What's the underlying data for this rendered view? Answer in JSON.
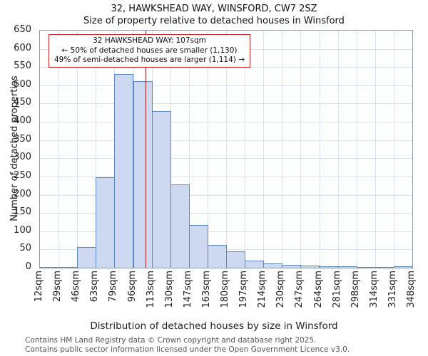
{
  "title": "32, HAWKSHEAD WAY, WINSFORD, CW7 2SZ",
  "subtitle": "Size of property relative to detached houses in Winsford",
  "annotation": {
    "line1": "32 HAWKSHEAD WAY: 107sqm",
    "line2": "← 50% of detached houses are smaller (1,130)",
    "line3": "49% of semi-detached houses are larger (1,114) →"
  },
  "footer": {
    "line1": "Contains HM Land Registry data © Crown copyright and database right 2025.",
    "line2": "Contains public sector information licensed under the Open Government Licence v3.0."
  },
  "chart_data": {
    "type": "bar",
    "title": "32, HAWKSHEAD WAY, WINSFORD, CW7 2SZ — Size of property relative to detached houses in Winsford",
    "xlabel": "Distribution of detached houses by size in Winsford",
    "ylabel": "Number of detached properties",
    "tick_labels": [
      "12sqm",
      "29sqm",
      "46sqm",
      "63sqm",
      "79sqm",
      "96sqm",
      "113sqm",
      "130sqm",
      "147sqm",
      "163sqm",
      "180sqm",
      "197sqm",
      "214sqm",
      "230sqm",
      "247sqm",
      "264sqm",
      "281sqm",
      "298sqm",
      "314sqm",
      "331sqm",
      "348sqm"
    ],
    "bin_edges_sqm": [
      12,
      29,
      46,
      63,
      79,
      96,
      113,
      130,
      147,
      163,
      180,
      197,
      214,
      230,
      247,
      264,
      281,
      298,
      314,
      331,
      348
    ],
    "values": [
      2,
      2,
      57,
      247,
      530,
      512,
      430,
      228,
      117,
      62,
      45,
      20,
      12,
      8,
      6,
      4,
      3,
      2,
      1,
      3
    ],
    "ylim": [
      0,
      650
    ],
    "ytick_step": 50,
    "grid": true,
    "legend": "none",
    "marker_sqm": 107,
    "marker_color": "#8b1a1a",
    "annotation_border_color": "#cc2222",
    "bar_fill": "#cdd9f1",
    "bar_stroke": "#5b87c4"
  }
}
